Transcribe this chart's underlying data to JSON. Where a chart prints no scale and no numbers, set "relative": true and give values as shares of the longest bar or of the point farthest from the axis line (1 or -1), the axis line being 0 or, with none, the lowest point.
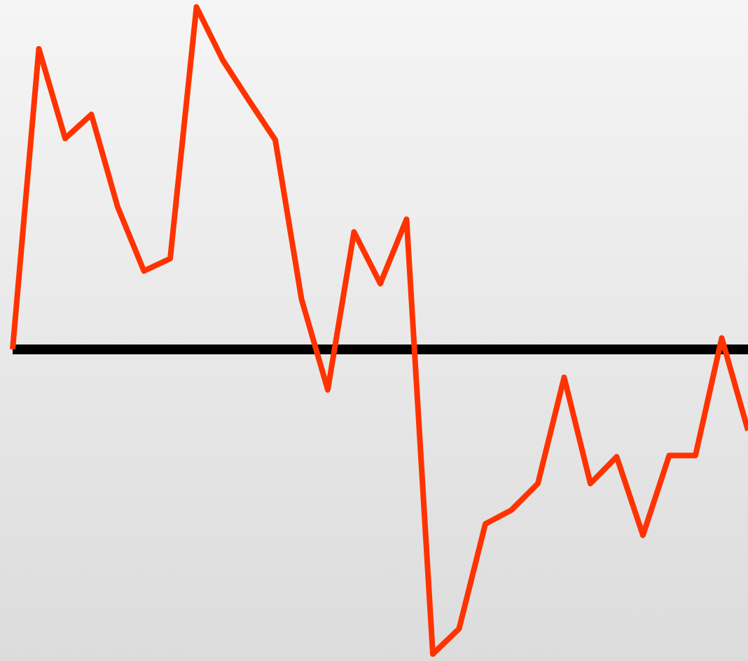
{
  "chart_data": {
    "type": "line",
    "relative": true,
    "categories": [
      null,
      null,
      null,
      null,
      null,
      null,
      null,
      null,
      null,
      null,
      null,
      null,
      null,
      null,
      null,
      null,
      null,
      null,
      null,
      null,
      null,
      null,
      null,
      null,
      null,
      null,
      null,
      null,
      null
    ],
    "series": [
      {
        "color": "#ff3300",
        "values": [
          0,
          0.878,
          0.616,
          0.686,
          0.416,
          0.229,
          0.265,
          1,
          0.845,
          0.727,
          0.612,
          0.147,
          -0.118,
          0.343,
          0.192,
          0.38,
          -0.89,
          -0.816,
          -0.51,
          -0.469,
          -0.392,
          -0.082,
          -0.392,
          -0.314,
          -0.543,
          -0.31,
          -0.31,
          0.033,
          -0.237
        ]
      }
    ]
  }
}
